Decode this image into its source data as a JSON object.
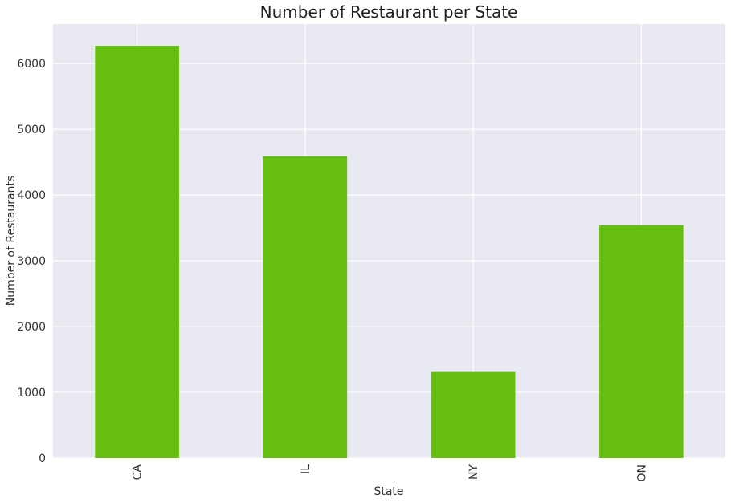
{
  "chart_data": {
    "type": "bar",
    "title": "Number of Restaurant per State",
    "xlabel": "State",
    "ylabel": "Number of Restaurants",
    "categories": [
      "CA",
      "IL",
      "NY",
      "ON"
    ],
    "values": [
      6270,
      4590,
      1310,
      3540
    ],
    "ylim": [
      0,
      6600
    ],
    "yticks": [
      0,
      1000,
      2000,
      3000,
      4000,
      5000,
      6000
    ],
    "grid": true,
    "legend": "none",
    "bar_color": "#66bf10",
    "background_color": "#e9e9f1"
  }
}
